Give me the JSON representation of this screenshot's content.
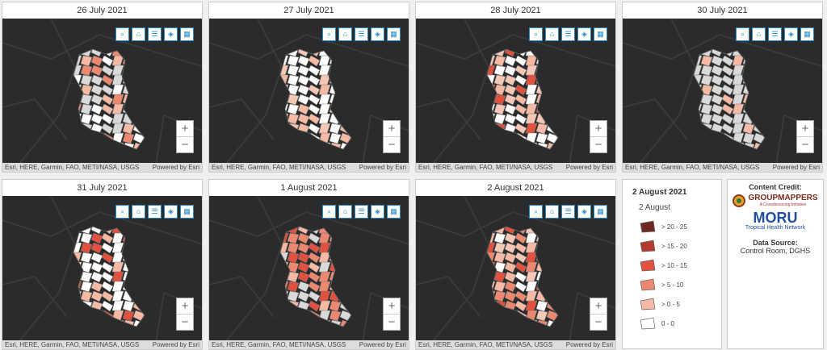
{
  "panels": [
    {
      "title": "26 July 2021"
    },
    {
      "title": "27 July 2021"
    },
    {
      "title": "28 July 2021"
    },
    {
      "title": "30 July 2021"
    },
    {
      "title": "31 July 2021"
    },
    {
      "title": "1 August 2021"
    },
    {
      "title": "2 August 2021"
    }
  ],
  "attribution": "Esri, HERE, Garmin, FAO, METI/NASA, USGS",
  "powered": "Powered by Esri",
  "zoom_in": "+",
  "zoom_out": "−",
  "legend": {
    "title": "2 August 2021",
    "layer": "2 August",
    "items": [
      {
        "label": "> 20 - 25",
        "color": "#6e2a22"
      },
      {
        "label": "> 15 - 20",
        "color": "#b23a2e"
      },
      {
        "label": "> 10 - 15",
        "color": "#e0513f"
      },
      {
        "label": "> 5 - 10",
        "color": "#ec8770"
      },
      {
        "label": "> 0 - 5",
        "color": "#f5b9a4"
      },
      {
        "label": "0 - 0",
        "color": "#ffffff"
      }
    ]
  },
  "credit": {
    "heading": "Content Credit:",
    "group_mappers": "GROUPMAPPERS",
    "group_sub": "A Crowdsourcing Initiative",
    "moru": "MORU",
    "moru_sub": "Tropical Health Network",
    "source_heading": "Data Source:",
    "source": "Control Room, DGHS"
  }
}
